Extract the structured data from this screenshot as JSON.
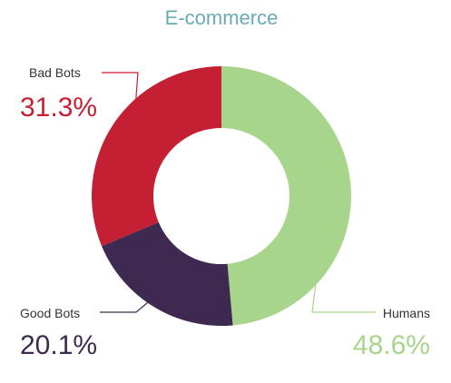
{
  "chart_data": {
    "type": "pie",
    "title": "E-commerce",
    "title_color": "#6aaab5",
    "hole": "donut",
    "slices": [
      {
        "label": "Humans",
        "value": 48.6,
        "display": "48.6%",
        "color": "#a8d58c"
      },
      {
        "label": "Good Bots",
        "value": 20.1,
        "display": "20.1%",
        "color": "#3e2a50"
      },
      {
        "label": "Bad Bots",
        "value": 31.3,
        "display": "31.3%",
        "color": "#c51f34"
      }
    ],
    "leader_line_color": "#a09aa3"
  }
}
